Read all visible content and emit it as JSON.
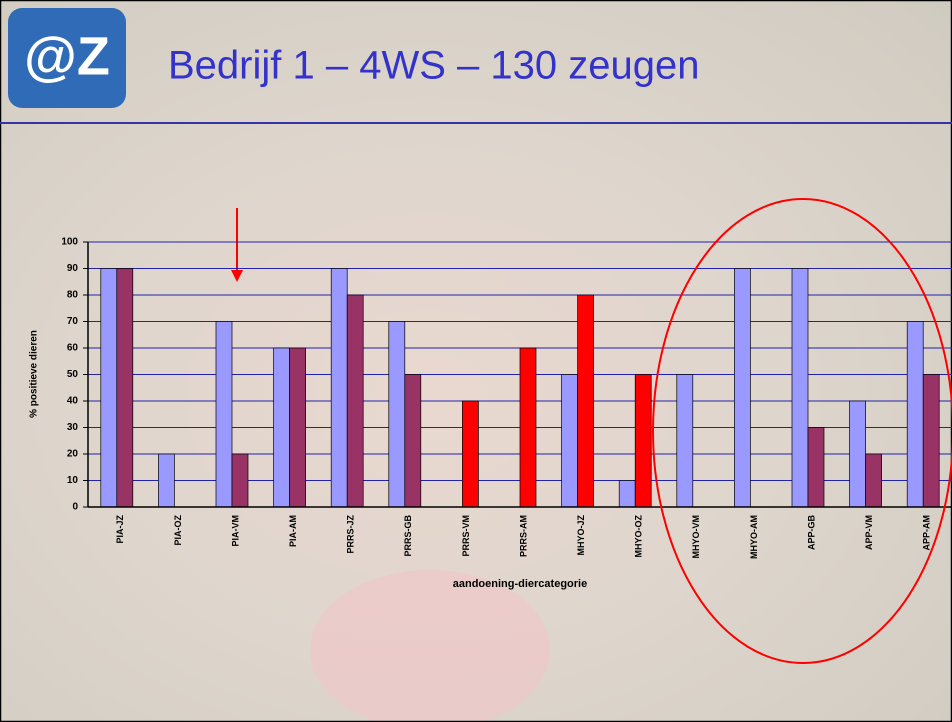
{
  "logo": "@Z",
  "chart_data": {
    "type": "bar",
    "title": "Bedrijf 1 – 4WS – 130 zeugen",
    "ylabel": "% positieve dieren",
    "xlabel": "aandoening-diercategorie",
    "categories": [
      "PIA-JZ",
      "PIA-OZ",
      "PIA-VM",
      "PIA-AM",
      "PRRS-JZ",
      "PRRS-GB",
      "PRRS-VM",
      "PRRS-AM",
      "MHYO-JZ",
      "MHYO-OZ",
      "MHYO-VM",
      "MHYO-AM",
      "APP-GB",
      "APP-VM",
      "APP-AM"
    ],
    "series": [
      {
        "color": "#9999ff",
        "values": [
          90,
          20,
          70,
          60,
          90,
          70,
          null,
          null,
          50,
          10,
          50,
          90,
          90,
          40,
          70
        ]
      },
      {
        "color": "#993366",
        "colors": [
          null,
          null,
          null,
          null,
          null,
          null,
          "#ff0000",
          "#ff0000",
          "#ff0000",
          "#ff0000",
          null,
          null,
          null,
          null,
          null
        ],
        "values": [
          90,
          null,
          20,
          60,
          80,
          50,
          40,
          60,
          80,
          50,
          null,
          null,
          30,
          20,
          50
        ]
      }
    ],
    "ylim": [
      0,
      100
    ],
    "yticks": [
      0,
      10,
      20,
      30,
      40,
      50,
      60,
      70,
      80,
      90,
      100
    ],
    "grid": true
  }
}
